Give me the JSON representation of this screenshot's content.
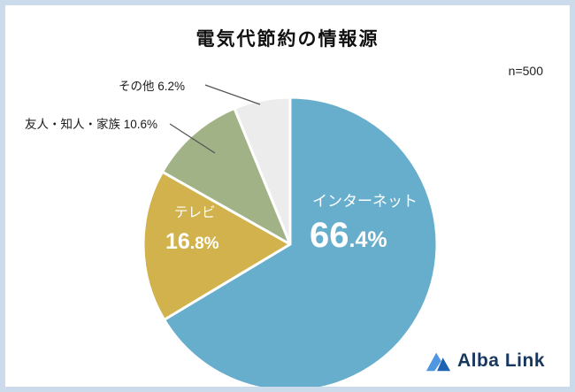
{
  "title": "電気代節約の情報源",
  "sample_size": "n=500",
  "chart_data": {
    "type": "pie",
    "title": "電気代節約の情報源",
    "n_label": "n=500",
    "start_angle": "top",
    "direction": "clockwise",
    "slices": [
      {
        "label": "インターネット",
        "value": 66.4,
        "pct": "66.4%",
        "pct_main": "66",
        "pct_sub": ".4%",
        "color": "#67aecd",
        "label_position": "inside"
      },
      {
        "label": "テレビ",
        "value": 16.8,
        "pct": "16.8%",
        "pct_main": "16",
        "pct_sub": ".8%",
        "color": "#d1b24c",
        "label_position": "inside"
      },
      {
        "label": "友人・知人・家族",
        "value": 10.6,
        "pct": "10.6%",
        "color": "#a1b286",
        "label_position": "outside"
      },
      {
        "label": "その他",
        "value": 6.2,
        "pct": "6.2%",
        "color": "#ececec",
        "label_position": "outside"
      }
    ]
  },
  "logo": {
    "text": "Alba Link",
    "accent_light": "#4f97e0",
    "accent_dark": "#1e62b4"
  }
}
